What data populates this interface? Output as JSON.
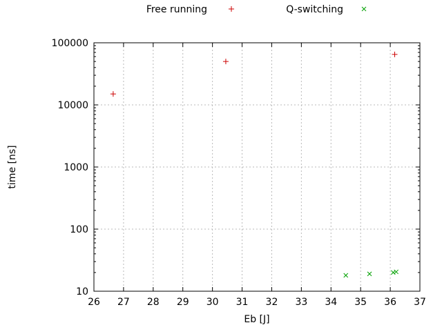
{
  "chart_data": {
    "type": "scatter",
    "title": "",
    "xlabel": "Eb [J]",
    "ylabel": "time [ns]",
    "x_scale": "linear",
    "y_scale": "log",
    "x_range": [
      26,
      37
    ],
    "y_range": [
      10,
      100000
    ],
    "x_ticks": [
      26,
      27,
      28,
      29,
      30,
      31,
      32,
      33,
      34,
      35,
      36,
      37
    ],
    "y_ticks": [
      10,
      100,
      1000,
      10000,
      100000
    ],
    "grid": true,
    "legend_position": "top-center",
    "series": [
      {
        "name": "Free running",
        "marker": "plus",
        "color": "#cc0000",
        "points": [
          [
            26.65,
            15000
          ],
          [
            30.45,
            50000
          ],
          [
            36.15,
            65000
          ]
        ]
      },
      {
        "name": "Q-switching",
        "marker": "cross",
        "color": "#00a000",
        "points": [
          [
            34.5,
            18
          ],
          [
            35.3,
            19
          ],
          [
            36.1,
            20
          ],
          [
            36.2,
            20.5
          ]
        ]
      }
    ],
    "colors": {
      "grid": "#b8b8b8",
      "axis": "#000000",
      "text": "#000000"
    }
  }
}
